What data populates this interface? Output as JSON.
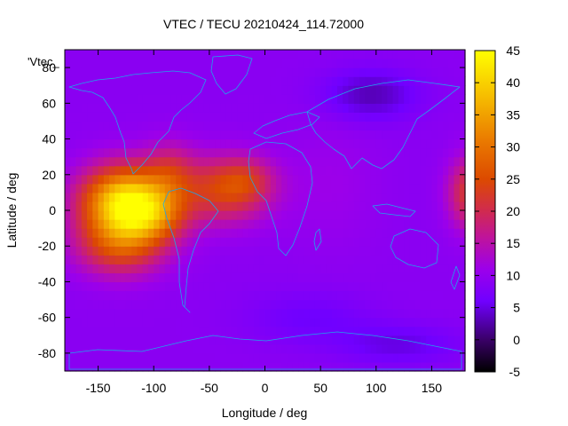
{
  "chart_data": {
    "type": "heatmap",
    "title": "VTEC / TECU 20210424_114.72000",
    "xlabel": "Longitude / deg",
    "ylabel": "Latitude / deg",
    "key_label": "'Vtec_",
    "xlim": [
      -180,
      180
    ],
    "ylim": [
      -90,
      90
    ],
    "x_ticks": [
      -150,
      -100,
      -50,
      0,
      50,
      100,
      150
    ],
    "y_ticks": [
      -80,
      -60,
      -40,
      -20,
      0,
      20,
      40,
      60,
      80
    ],
    "colorbar": {
      "label_min": -5,
      "label_max": 45,
      "ticks": [
        -5,
        0,
        5,
        10,
        15,
        20,
        25,
        30,
        35,
        40,
        45
      ]
    },
    "field": {
      "background": 9,
      "blobs": [
        {
          "lon": -125,
          "lat": 5,
          "slon": 28,
          "slat": 14,
          "amp": 33
        },
        {
          "lon": -100,
          "lat": -3,
          "slon": 22,
          "slat": 10,
          "amp": 10
        },
        {
          "lon": -130,
          "lat": -20,
          "slon": 28,
          "slat": 12,
          "amp": 14
        },
        {
          "lon": -85,
          "lat": 22,
          "slon": 16,
          "slat": 12,
          "amp": 8
        },
        {
          "lon": -35,
          "lat": 12,
          "slon": 28,
          "slat": 13,
          "amp": 15
        },
        {
          "lon": -15,
          "lat": 18,
          "slon": 16,
          "slat": 8,
          "amp": 5
        },
        {
          "lon": 185,
          "lat": 10,
          "slon": 14,
          "slat": 14,
          "amp": 14
        },
        {
          "lon": 95,
          "lat": 65,
          "slon": 30,
          "slat": 10,
          "amp": -6
        },
        {
          "lon": 120,
          "lat": -75,
          "slon": 40,
          "slat": 8,
          "amp": -4
        },
        {
          "lon": 40,
          "lat": -60,
          "slon": 40,
          "slat": 10,
          "amp": -3
        },
        {
          "lon": 60,
          "lat": 15,
          "slon": 30,
          "slat": 25,
          "amp": 2
        }
      ]
    }
  }
}
